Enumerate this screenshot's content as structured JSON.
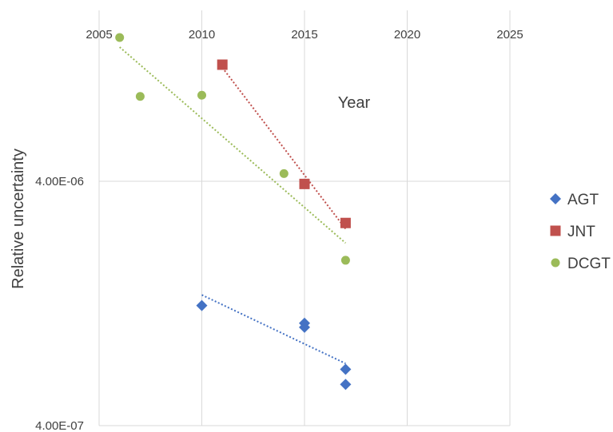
{
  "chart_data": {
    "type": "scatter",
    "xlabel": "Year",
    "ylabel": "Relative uncertainty",
    "xlim": [
      2005,
      2025
    ],
    "ylim": [
      4e-07,
      4e-05
    ],
    "y_scale": "log",
    "x_ticks": [
      "2005",
      "2010",
      "2015",
      "2020",
      "2025"
    ],
    "y_ticks": [
      {
        "value": 4e-07,
        "label": "4.00E-07"
      },
      {
        "value": 4e-06,
        "label": "4.00E-06"
      }
    ],
    "grid": true,
    "legend_position": "right",
    "series": [
      {
        "name": "AGT",
        "marker": "diamond",
        "color": "#4472C4",
        "trendline": "dotted",
        "points": [
          {
            "x": 2010,
            "y": 1.24e-06
          },
          {
            "x": 2015,
            "y": 1.05e-06
          },
          {
            "x": 2015,
            "y": 1.01e-06
          },
          {
            "x": 2017,
            "y": 6.8e-07
          },
          {
            "x": 2017,
            "y": 5.9e-07
          }
        ]
      },
      {
        "name": "JNT",
        "marker": "square",
        "color": "#C0504D",
        "trendline": "dotted",
        "points": [
          {
            "x": 2011,
            "y": 1.2e-05
          },
          {
            "x": 2015,
            "y": 3.9e-06
          },
          {
            "x": 2017,
            "y": 2.7e-06
          }
        ]
      },
      {
        "name": "DCGT",
        "marker": "circle",
        "color": "#9BBB59",
        "trendline": "dotted",
        "points": [
          {
            "x": 2006,
            "y": 1.55e-05
          },
          {
            "x": 2007,
            "y": 8.9e-06
          },
          {
            "x": 2010,
            "y": 9e-06
          },
          {
            "x": 2014,
            "y": 4.3e-06
          },
          {
            "x": 2017,
            "y": 1.9e-06
          }
        ]
      }
    ]
  }
}
